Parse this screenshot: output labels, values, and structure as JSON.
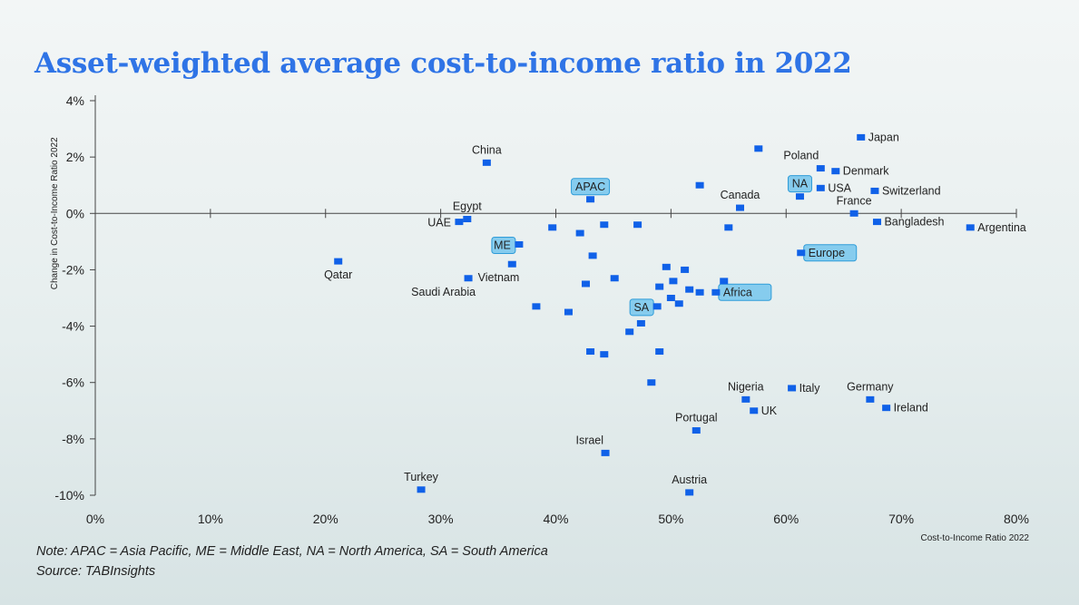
{
  "chart_data": {
    "type": "scatter",
    "title": "Asset-weighted average cost-to-income ratio in 2022",
    "xlabel": "Cost-to-Income Ratio 2022",
    "ylabel": "Change in Cost-to-Income Ratio 2022",
    "xlim": [
      0,
      80
    ],
    "ylim": [
      -10,
      4
    ],
    "xticks": [
      0,
      10,
      20,
      30,
      40,
      50,
      60,
      70,
      80
    ],
    "xtick_labels": [
      "0%",
      "10%",
      "20%",
      "30%",
      "40%",
      "50%",
      "60%",
      "70%",
      "80%"
    ],
    "yticks": [
      4,
      2,
      0,
      -2,
      -4,
      -6,
      -8,
      -10
    ],
    "ytick_labels": [
      "4%",
      "2%",
      "0%",
      "-2%",
      "-4%",
      "-6%",
      "-8%",
      "-10%"
    ],
    "points": [
      {
        "x": 34.0,
        "y": 1.8,
        "label": "China",
        "pos": "above"
      },
      {
        "x": 66.5,
        "y": 2.7,
        "label": "Japan",
        "pos": "right"
      },
      {
        "x": 57.6,
        "y": 2.3
      },
      {
        "x": 63.0,
        "y": 1.6,
        "label": "Poland",
        "pos": "above-left"
      },
      {
        "x": 64.3,
        "y": 1.5,
        "label": "Denmark",
        "pos": "right"
      },
      {
        "x": 63.0,
        "y": 0.9,
        "label": "USA",
        "pos": "right"
      },
      {
        "x": 67.7,
        "y": 0.8,
        "label": "Switzerland",
        "pos": "right"
      },
      {
        "x": 61.2,
        "y": 0.6,
        "label": "NA",
        "pos": "above",
        "highlight": true
      },
      {
        "x": 52.5,
        "y": 1.0
      },
      {
        "x": 43.0,
        "y": 0.5,
        "label": "APAC",
        "pos": "above",
        "highlight": true
      },
      {
        "x": 56.0,
        "y": 0.2,
        "label": "Canada",
        "pos": "above"
      },
      {
        "x": 65.9,
        "y": 0.0,
        "label": "France",
        "pos": "above"
      },
      {
        "x": 32.3,
        "y": -0.2,
        "label": "Egypt",
        "pos": "above"
      },
      {
        "x": 31.6,
        "y": -0.3,
        "label": "UAE",
        "pos": "left"
      },
      {
        "x": 67.9,
        "y": -0.3,
        "label": "Bangladesh",
        "pos": "right"
      },
      {
        "x": 76.0,
        "y": -0.5,
        "label": "Argentina",
        "pos": "right"
      },
      {
        "x": 39.7,
        "y": -0.5
      },
      {
        "x": 44.2,
        "y": -0.4
      },
      {
        "x": 47.1,
        "y": -0.4
      },
      {
        "x": 55.0,
        "y": -0.5
      },
      {
        "x": 42.1,
        "y": -0.7
      },
      {
        "x": 36.8,
        "y": -1.1,
        "label": "ME",
        "pos": "left",
        "highlight": true
      },
      {
        "x": 61.3,
        "y": -1.4,
        "label": "Europe",
        "pos": "right",
        "highlight": true
      },
      {
        "x": 43.2,
        "y": -1.5
      },
      {
        "x": 21.1,
        "y": -1.7,
        "label": "Qatar",
        "pos": "below"
      },
      {
        "x": 36.2,
        "y": -1.8,
        "label": "Vietnam",
        "pos": "below-left"
      },
      {
        "x": 49.6,
        "y": -1.9
      },
      {
        "x": 51.2,
        "y": -2.0
      },
      {
        "x": 32.4,
        "y": -2.3,
        "label": "Saudi Arabia",
        "pos": "below-left"
      },
      {
        "x": 45.1,
        "y": -2.3
      },
      {
        "x": 50.2,
        "y": -2.4
      },
      {
        "x": 54.6,
        "y": -2.4
      },
      {
        "x": 42.6,
        "y": -2.5
      },
      {
        "x": 49.0,
        "y": -2.6
      },
      {
        "x": 51.6,
        "y": -2.7
      },
      {
        "x": 52.5,
        "y": -2.8
      },
      {
        "x": 53.9,
        "y": -2.8,
        "label": "Africa",
        "pos": "right",
        "highlight": true
      },
      {
        "x": 50.0,
        "y": -3.0
      },
      {
        "x": 50.7,
        "y": -3.2
      },
      {
        "x": 48.8,
        "y": -3.3,
        "label": "SA",
        "pos": "left",
        "highlight": true
      },
      {
        "x": 38.3,
        "y": -3.3
      },
      {
        "x": 41.1,
        "y": -3.5
      },
      {
        "x": 47.4,
        "y": -3.9
      },
      {
        "x": 46.4,
        "y": -4.2
      },
      {
        "x": 43.0,
        "y": -4.9
      },
      {
        "x": 44.2,
        "y": -5.0
      },
      {
        "x": 49.0,
        "y": -4.9
      },
      {
        "x": 48.3,
        "y": -6.0
      },
      {
        "x": 60.5,
        "y": -6.2,
        "label": "Italy",
        "pos": "right"
      },
      {
        "x": 56.5,
        "y": -6.6,
        "label": "Nigeria",
        "pos": "above"
      },
      {
        "x": 67.3,
        "y": -6.6,
        "label": "Germany",
        "pos": "above"
      },
      {
        "x": 57.2,
        "y": -7.0,
        "label": "UK",
        "pos": "right"
      },
      {
        "x": 68.7,
        "y": -6.9,
        "label": "Ireland",
        "pos": "right"
      },
      {
        "x": 52.2,
        "y": -7.7,
        "label": "Portugal",
        "pos": "above"
      },
      {
        "x": 44.3,
        "y": -8.5,
        "label": "Israel",
        "pos": "above-left"
      },
      {
        "x": 28.3,
        "y": -9.8,
        "label": "Turkey",
        "pos": "above"
      },
      {
        "x": 51.6,
        "y": -9.9,
        "label": "Austria",
        "pos": "above"
      }
    ]
  },
  "notes": {
    "note": "Note: APAC = Asia Pacific, ME = Middle East, NA = North America, SA = South America",
    "source": "Source: TABInsights"
  }
}
